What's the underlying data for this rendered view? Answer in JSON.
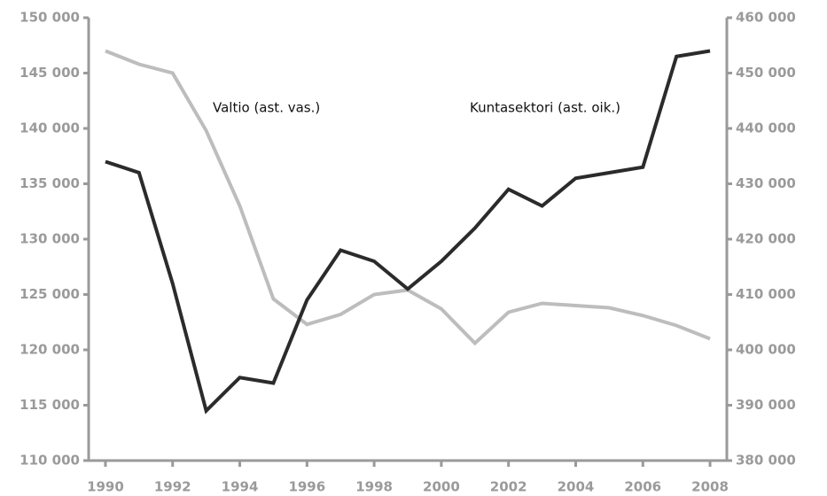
{
  "chart_data": {
    "type": "line",
    "x": [
      1990,
      1991,
      1992,
      1993,
      1994,
      1995,
      1996,
      1997,
      1998,
      1999,
      2000,
      2001,
      2002,
      2003,
      2004,
      2005,
      2006,
      2007,
      2008
    ],
    "xlim": [
      1989.5,
      2008.5
    ],
    "xticks": [
      1990,
      1992,
      1994,
      1996,
      1998,
      2000,
      2002,
      2004,
      2006,
      2008
    ],
    "ylim": [
      110000,
      150000
    ],
    "yticks": [
      {
        "value": 110000,
        "label": "110 000"
      },
      {
        "value": 115000,
        "label": "115 000"
      },
      {
        "value": 120000,
        "label": "120 000"
      },
      {
        "value": 125000,
        "label": "125 000"
      },
      {
        "value": 130000,
        "label": "130 000"
      },
      {
        "value": 135000,
        "label": "135 000"
      },
      {
        "value": 140000,
        "label": "140 000"
      },
      {
        "value": 145000,
        "label": "145 000"
      },
      {
        "value": 150000,
        "label": "150 000"
      }
    ],
    "y2lim": [
      380000,
      460000
    ],
    "y2ticks": [
      {
        "value": 380000,
        "label": "380 000"
      },
      {
        "value": 390000,
        "label": "390 000"
      },
      {
        "value": 400000,
        "label": "400 000"
      },
      {
        "value": 410000,
        "label": "410 000"
      },
      {
        "value": 420000,
        "label": "420 000"
      },
      {
        "value": 430000,
        "label": "430 000"
      },
      {
        "value": 440000,
        "label": "440 000"
      },
      {
        "value": 450000,
        "label": "450 000"
      },
      {
        "value": 460000,
        "label": "460 000"
      }
    ],
    "series": [
      {
        "name": "Valtio (ast. vas.)",
        "color": "#bdbdbd",
        "values": [
          147000,
          145800,
          145000,
          139800,
          133000,
          124600,
          122300,
          123200,
          125000,
          125400,
          123700,
          120600,
          123400,
          124200,
          124000,
          123800,
          123100,
          122200,
          121000
        ]
      },
      {
        "name": "Kuntasektori (ast. oik.)",
        "color": "#2b2b2b",
        "axis": "y2",
        "values": [
          434000,
          432000,
          412000,
          389000,
          395000,
          394000,
          409000,
          418000,
          416000,
          411000,
          416000,
          422000,
          429000,
          426000,
          431000,
          432000,
          433000,
          453000,
          454000
        ]
      }
    ]
  }
}
